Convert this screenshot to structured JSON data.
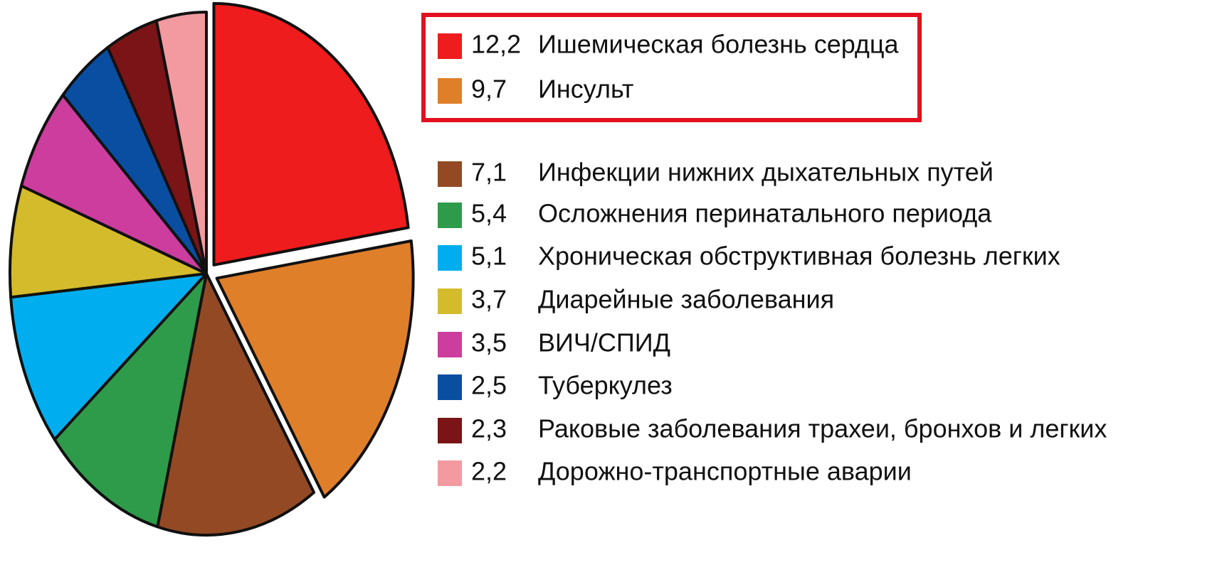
{
  "chart_data": {
    "type": "pie",
    "categories": [
      "Ишемическая болезнь сердца",
      "Инсульт",
      "Инфекции нижних дыхательных путей",
      "Осложнения перинатального периода",
      "Хроническая обструктивная болезнь легких",
      "Диарейные заболевания",
      "ВИЧ/СПИД",
      "Туберкулез",
      "Раковые заболевания трахеи, бронхов и легких",
      "Дорожно-транспортные аварии"
    ],
    "values": [
      12.2,
      9.7,
      7.1,
      5.4,
      5.1,
      3.7,
      3.5,
      2.5,
      2.3,
      2.2
    ],
    "value_labels": [
      "12,2",
      "9,7",
      "7,1",
      "5,4",
      "5,1",
      "3,7",
      "3,5",
      "2,5",
      "2,3",
      "2,2"
    ],
    "colors": [
      "#ee1c1c",
      "#e07f2a",
      "#934a24",
      "#2e9b4a",
      "#00aeef",
      "#d4bb2c",
      "#cc3d9e",
      "#0a4ea2",
      "#7a1416",
      "#f39aa0"
    ],
    "highlight": [
      0,
      1
    ]
  }
}
